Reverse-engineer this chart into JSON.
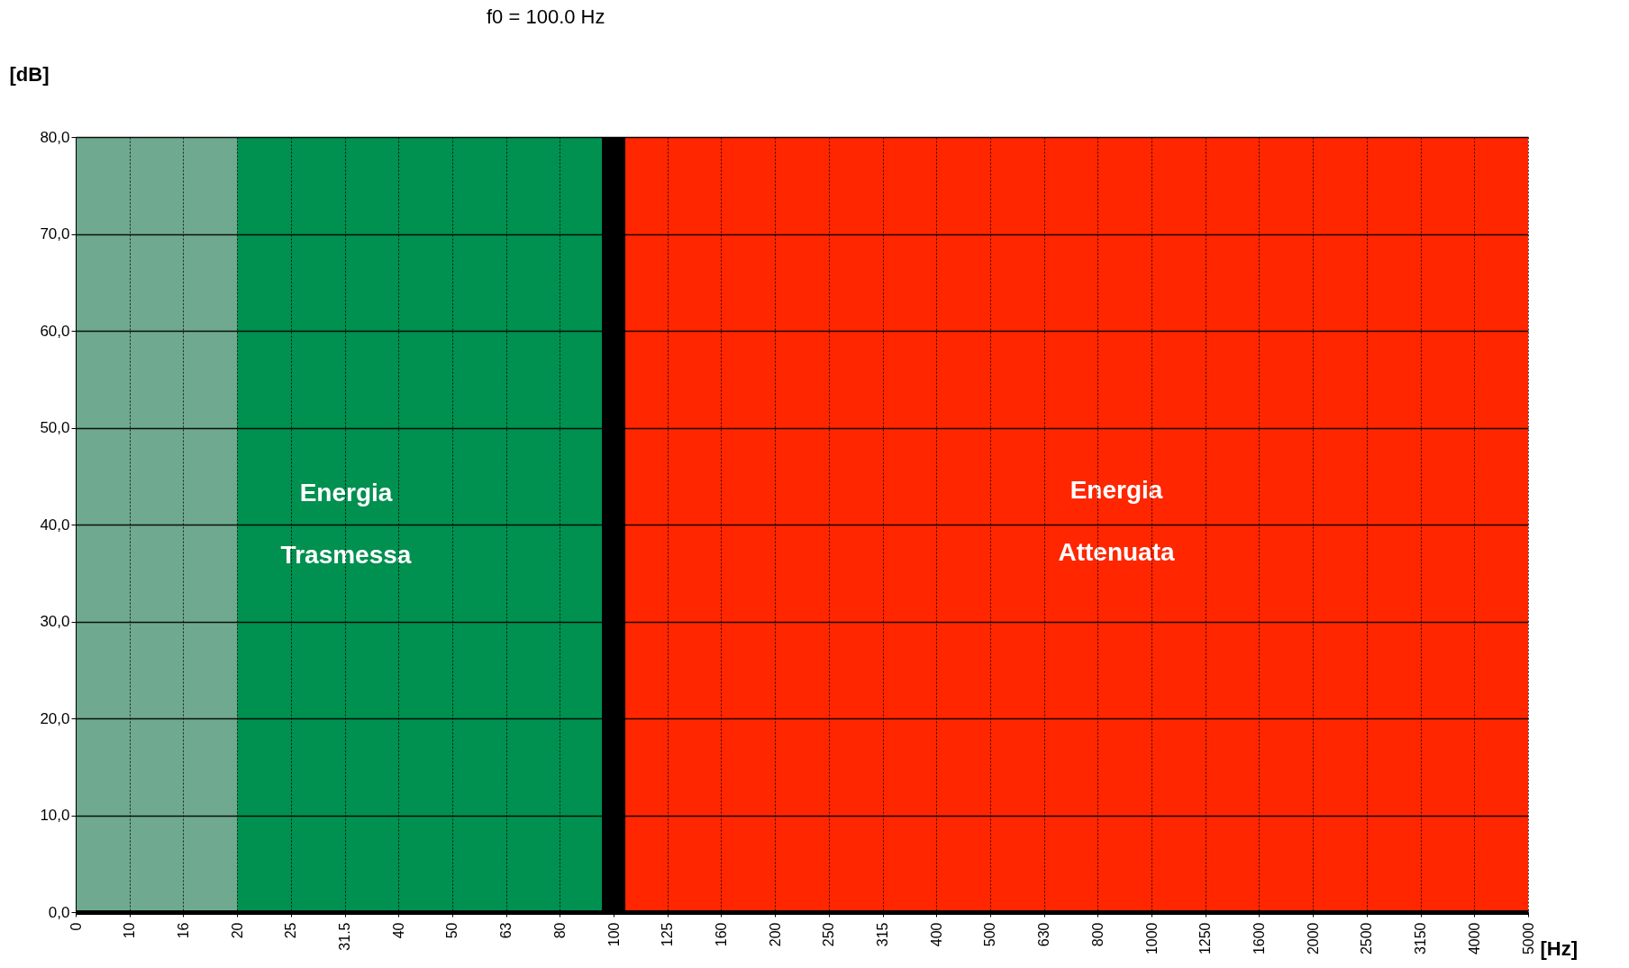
{
  "chart_data": {
    "type": "line",
    "title": "f0 = 100.0 Hz",
    "xlabel": "[Hz]",
    "ylabel": "[dB]",
    "categories": [
      "0",
      "10",
      "16",
      "20",
      "25",
      "31.5",
      "40",
      "50",
      "63",
      "80",
      "100",
      "125",
      "160",
      "200",
      "250",
      "315",
      "400",
      "500",
      "630",
      "800",
      "1000",
      "1250",
      "1600",
      "2000",
      "2500",
      "3150",
      "4000",
      "5000"
    ],
    "ylim": [
      0,
      80
    ],
    "yticks": [
      {
        "value": 0,
        "label": "0,0"
      },
      {
        "value": 10,
        "label": "10,0"
      },
      {
        "value": 20,
        "label": "20,0"
      },
      {
        "value": 30,
        "label": "30,0"
      },
      {
        "value": 40,
        "label": "40,0"
      },
      {
        "value": 50,
        "label": "50,0"
      },
      {
        "value": 60,
        "label": "60,0"
      },
      {
        "value": 70,
        "label": "70,0"
      },
      {
        "value": 80,
        "label": "80,0"
      }
    ],
    "grid": true,
    "bands": [
      {
        "axis": "x",
        "from": "0",
        "to": "20",
        "color": "#6fa98f"
      },
      {
        "axis": "x",
        "from": "20",
        "to": "100",
        "color": "#009050"
      },
      {
        "axis": "x",
        "from": "100",
        "to": "5000",
        "color": "#ff2600"
      }
    ],
    "ref_lines": [
      {
        "axis": "x",
        "value": "100",
        "color": "#000000"
      }
    ],
    "annotations": [
      "Energia",
      "Trasmessa",
      "Energia",
      "Attenuata"
    ]
  }
}
